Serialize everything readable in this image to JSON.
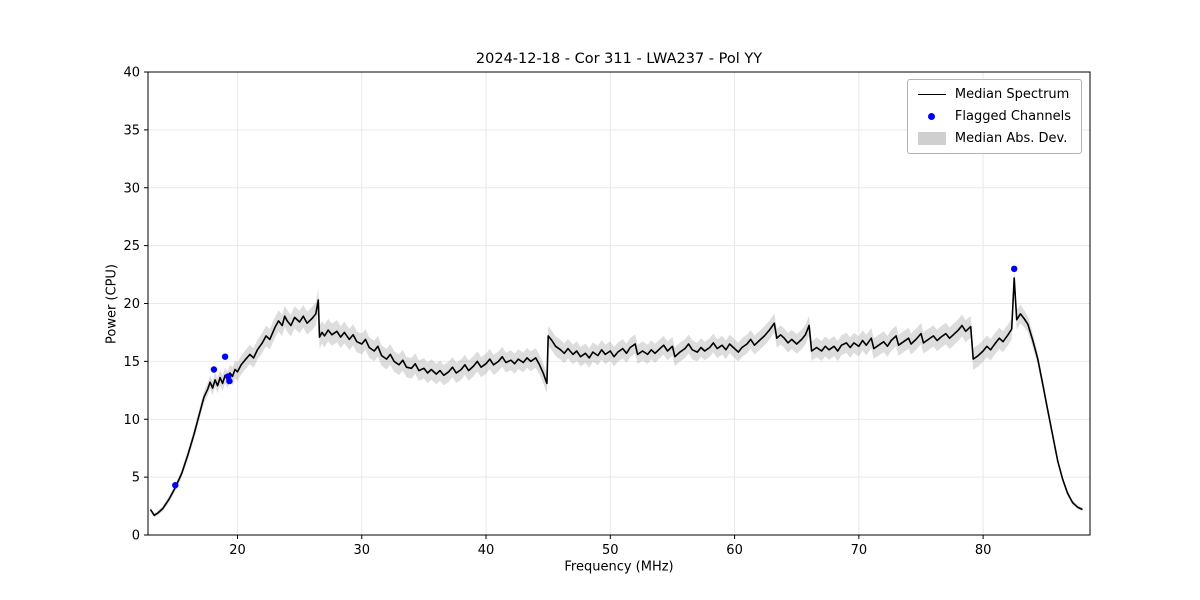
{
  "colors": {
    "line": "#000000",
    "flagged": "#0000ff",
    "band": "#9e9e9e",
    "band_opacity": 0.35,
    "grid": "#e9e9e9",
    "axis": "#000000",
    "background": "#ffffff"
  },
  "chart_data": {
    "type": "line",
    "title": "2024-12-18 - Cor 311 - LWA237 - Pol YY",
    "xlabel": "Frequency (MHz)",
    "ylabel": "Power (CPU)",
    "xlim": [
      12.8,
      88.6
    ],
    "ylim": [
      0,
      40
    ],
    "xticks": [
      20,
      30,
      40,
      50,
      60,
      70,
      80
    ],
    "yticks": [
      0,
      5,
      10,
      15,
      20,
      25,
      30,
      35,
      40
    ],
    "grid": true,
    "legend": [
      {
        "label": "Median Spectrum",
        "type": "line",
        "color": "#000000"
      },
      {
        "label": "Flagged Channels",
        "type": "dot",
        "color": "#0000ff"
      },
      {
        "label": "Median Abs. Dev.",
        "type": "band",
        "color": "#cfcfcf"
      }
    ],
    "series": [
      {
        "name": "Median Spectrum",
        "x": [
          13.0,
          13.3,
          13.6,
          14.0,
          14.5,
          15.0,
          15.5,
          16.0,
          16.5,
          17.0,
          17.3,
          17.6,
          17.8,
          18.0,
          18.2,
          18.4,
          18.6,
          18.8,
          19.0,
          19.2,
          19.4,
          19.6,
          19.8,
          20.0,
          20.3,
          20.6,
          21.0,
          21.3,
          21.6,
          22.0,
          22.3,
          22.6,
          23.0,
          23.3,
          23.6,
          23.8,
          24.0,
          24.3,
          24.6,
          25.0,
          25.3,
          25.6,
          26.0,
          26.3,
          26.5,
          26.6,
          26.8,
          27.0,
          27.3,
          27.6,
          28.0,
          28.3,
          28.6,
          29.0,
          29.3,
          29.6,
          30.0,
          30.3,
          30.6,
          31.0,
          31.3,
          31.6,
          32.0,
          32.3,
          32.6,
          33.0,
          33.3,
          33.6,
          34.0,
          34.3,
          34.6,
          35.0,
          35.3,
          35.6,
          36.0,
          36.3,
          36.6,
          37.0,
          37.3,
          37.6,
          38.0,
          38.3,
          38.6,
          39.0,
          39.3,
          39.6,
          40.0,
          40.3,
          40.6,
          41.0,
          41.3,
          41.6,
          42.0,
          42.3,
          42.6,
          43.0,
          43.3,
          43.6,
          44.0,
          44.3,
          44.6,
          44.9,
          45.0,
          45.3,
          45.6,
          46.0,
          46.3,
          46.6,
          47.0,
          47.3,
          47.6,
          48.0,
          48.3,
          48.6,
          49.0,
          49.3,
          49.6,
          50.0,
          50.3,
          50.6,
          51.0,
          51.3,
          51.6,
          52.0,
          52.2,
          52.6,
          53.0,
          53.3,
          53.6,
          54.0,
          54.3,
          54.6,
          55.0,
          55.2,
          55.6,
          56.0,
          56.3,
          56.6,
          57.0,
          57.3,
          57.6,
          58.0,
          58.3,
          58.6,
          59.0,
          59.3,
          59.6,
          60.0,
          60.3,
          60.6,
          61.0,
          61.3,
          61.6,
          62.0,
          62.4,
          62.8,
          63.0,
          63.2,
          63.4,
          63.7,
          64.0,
          64.3,
          64.6,
          65.0,
          65.4,
          65.7,
          66.0,
          66.2,
          66.6,
          67.0,
          67.3,
          67.6,
          68.0,
          68.3,
          68.6,
          69.0,
          69.3,
          69.6,
          70.0,
          70.3,
          70.6,
          71.0,
          71.2,
          71.6,
          72.0,
          72.3,
          72.6,
          73.0,
          73.2,
          73.6,
          74.0,
          74.2,
          74.6,
          75.0,
          75.2,
          75.6,
          76.0,
          76.3,
          76.6,
          77.0,
          77.3,
          77.6,
          78.0,
          78.3,
          78.6,
          79.0,
          79.2,
          79.6,
          80.0,
          80.3,
          80.6,
          81.0,
          81.3,
          81.6,
          82.0,
          82.3,
          82.5,
          82.7,
          83.0,
          83.3,
          83.6,
          84.0,
          84.4,
          84.8,
          85.2,
          85.6,
          86.0,
          86.4,
          86.8,
          87.2,
          87.6,
          88.0
        ],
        "y": [
          2.2,
          1.7,
          1.9,
          2.3,
          3.1,
          4.1,
          5.3,
          6.9,
          8.7,
          10.7,
          11.9,
          12.6,
          13.2,
          12.7,
          13.4,
          12.9,
          13.6,
          13.1,
          13.8,
          13.4,
          14.0,
          13.7,
          14.3,
          14.1,
          14.7,
          15.1,
          15.6,
          15.3,
          16.0,
          16.6,
          17.2,
          16.9,
          17.9,
          18.5,
          18.1,
          18.9,
          18.5,
          18.1,
          18.8,
          18.4,
          18.9,
          18.3,
          18.7,
          19.1,
          20.3,
          17.1,
          17.5,
          17.2,
          17.7,
          17.3,
          17.6,
          17.1,
          17.5,
          16.9,
          17.3,
          16.7,
          16.5,
          16.9,
          16.2,
          15.9,
          16.3,
          15.5,
          15.2,
          15.6,
          15.0,
          14.7,
          15.1,
          14.5,
          14.4,
          14.8,
          14.2,
          14.4,
          14.0,
          14.3,
          13.9,
          14.2,
          13.8,
          14.1,
          14.5,
          14.0,
          14.3,
          14.7,
          14.2,
          14.6,
          15.0,
          14.5,
          14.8,
          15.2,
          14.7,
          15.0,
          15.4,
          14.9,
          15.1,
          14.8,
          15.2,
          14.9,
          15.3,
          15.0,
          15.3,
          14.7,
          14.0,
          13.1,
          17.2,
          16.8,
          16.3,
          16.0,
          15.7,
          16.1,
          15.6,
          15.9,
          15.4,
          15.7,
          15.3,
          15.8,
          15.5,
          16.0,
          15.6,
          15.9,
          15.4,
          15.8,
          16.1,
          15.7,
          16.2,
          16.5,
          15.6,
          15.9,
          15.6,
          16.0,
          15.7,
          16.1,
          16.4,
          15.9,
          16.3,
          15.4,
          15.8,
          16.1,
          16.5,
          16.0,
          15.8,
          16.2,
          15.9,
          16.2,
          16.6,
          16.1,
          16.4,
          16.0,
          16.5,
          16.1,
          15.8,
          16.2,
          16.5,
          16.9,
          16.4,
          16.8,
          17.2,
          17.7,
          18.0,
          18.3,
          17.0,
          17.3,
          17.0,
          16.6,
          16.9,
          16.5,
          16.9,
          17.3,
          18.1,
          15.9,
          16.2,
          15.9,
          16.3,
          16.0,
          16.3,
          15.9,
          16.4,
          16.6,
          16.2,
          16.6,
          16.3,
          16.8,
          16.4,
          17.0,
          16.1,
          16.4,
          16.7,
          16.3,
          16.8,
          17.2,
          16.4,
          16.7,
          17.0,
          16.5,
          16.9,
          17.4,
          16.6,
          16.9,
          17.2,
          16.8,
          17.1,
          17.4,
          17.0,
          17.3,
          17.7,
          18.1,
          17.6,
          18.0,
          15.2,
          15.5,
          15.9,
          16.3,
          16.0,
          16.6,
          17.0,
          16.7,
          17.3,
          17.8,
          22.2,
          18.6,
          19.1,
          18.7,
          18.2,
          16.8,
          15.2,
          13.0,
          10.8,
          8.6,
          6.4,
          4.8,
          3.6,
          2.8,
          2.4,
          2.2
        ]
      }
    ],
    "mad_band": {
      "x": [
        13.0,
        15.0,
        17.0,
        20.0,
        26.0,
        30.0,
        45.0,
        60.0,
        79.0,
        82.5,
        84.0,
        86.0,
        88.0
      ],
      "halfwidth": [
        0.15,
        0.3,
        0.5,
        0.8,
        1.0,
        0.9,
        0.85,
        0.8,
        0.95,
        0.9,
        0.6,
        0.25,
        0.15
      ]
    },
    "flagged_channels": {
      "x": [
        15.0,
        18.1,
        19.0,
        19.25,
        19.35,
        82.5
      ],
      "y": [
        4.3,
        14.3,
        15.4,
        13.7,
        13.3,
        23.0
      ]
    }
  }
}
